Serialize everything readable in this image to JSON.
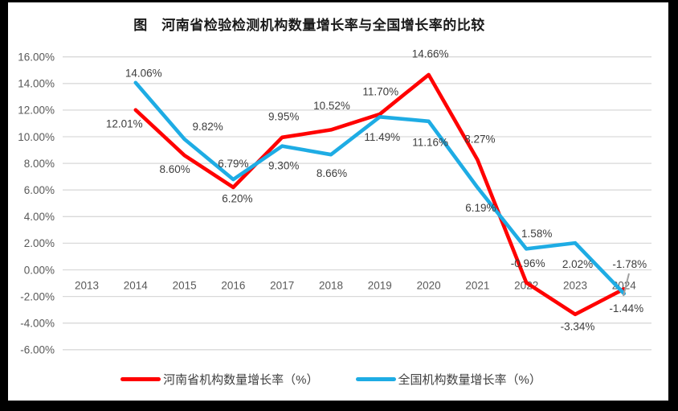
{
  "title": "图　河南省检验检测机构数量增长率与全国增长率的比较",
  "chart_data": {
    "type": "line",
    "x": [
      "2013",
      "2014",
      "2015",
      "2016",
      "2017",
      "2018",
      "2019",
      "2020",
      "2021",
      "2022",
      "2023",
      "2024"
    ],
    "series": [
      {
        "name": "河南省机构数量增长率（%）",
        "color": "#FF0000",
        "values": [
          null,
          12.01,
          8.6,
          6.2,
          9.95,
          10.52,
          11.7,
          14.66,
          8.27,
          -0.96,
          -3.34,
          -1.44
        ],
        "labels": [
          null,
          "12.01%",
          "8.60%",
          "6.20%",
          "9.95%",
          "10.52%",
          "11.70%",
          "14.66%",
          "8.27%",
          "-0.96%",
          "-3.34%",
          "-1.44%"
        ]
      },
      {
        "name": "全国机构数量增长率（%）",
        "color": "#1EACE4",
        "values": [
          null,
          14.06,
          9.82,
          6.79,
          9.3,
          8.66,
          11.49,
          11.16,
          6.19,
          1.58,
          2.02,
          -1.78
        ],
        "labels": [
          null,
          "14.06%",
          "9.82%",
          "6.79%",
          "9.30%",
          "8.66%",
          "11.49%",
          "11.16%",
          "6.19%",
          "1.58%",
          "2.02%",
          "-1.78%"
        ]
      }
    ],
    "ylim": [
      -6,
      16
    ],
    "ytick_step": 2,
    "y_tick_labels": [
      "16.00%",
      "14.00%",
      "12.00%",
      "10.00%",
      "8.00%",
      "6.00%",
      "4.00%",
      "2.00%",
      "0.00%",
      "-2.00%",
      "-4.00%",
      "-6.00%"
    ],
    "grid": true,
    "legend_position": "bottom",
    "colors": {
      "grid": "#D9D9D9",
      "axis_text": "#595959",
      "data_label_text": "#3D3D3D",
      "frame": "#000000",
      "background": "#FFFFFF",
      "cursor": "#A0A0A0"
    }
  }
}
